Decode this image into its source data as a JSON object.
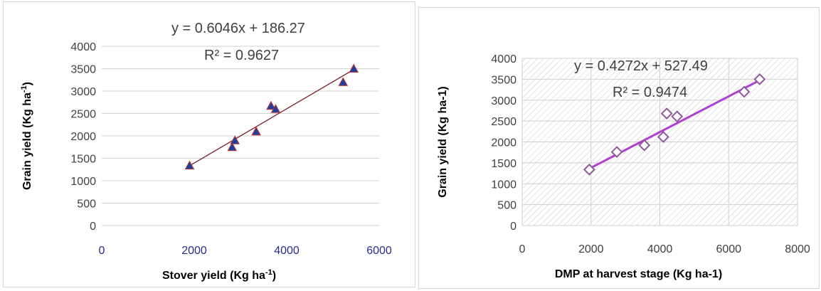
{
  "chart_data": [
    {
      "type": "scatter",
      "xlabel": "Stover yield (Kg ha",
      "xlabel_sup": "-1",
      "xlabel_end": ")",
      "ylabel": "Grain yield (Kg ha",
      "ylabel_sup": "-1",
      "ylabel_end": ")",
      "xlim": [
        0,
        6000
      ],
      "ylim": [
        0,
        4000
      ],
      "xticks": [
        "0",
        "2000",
        "4000",
        "6000"
      ],
      "yticks": [
        "0",
        "500",
        "1000",
        "1500",
        "2000",
        "2500",
        "3000",
        "3500",
        "4000"
      ],
      "grid": "horizontal",
      "marker": "triangle",
      "marker_color": "#1f3f9f",
      "marker_edge_color": "#c0392b",
      "trendline_color": "#7b1c2a",
      "tick_color_x": "#2b2b8c",
      "tick_color_y": "#404040",
      "equation": "y = 0.6046x + 186.27",
      "r_squared": "R² = 0.9627",
      "trendline": {
        "slope": 0.6046,
        "intercept": 186.27,
        "x_range": [
          1900,
          5450
        ]
      },
      "series": [
        {
          "x": [
            1900,
            2820,
            2880,
            3340,
            3660,
            3760,
            5220,
            5450
          ],
          "y": [
            1340,
            1750,
            1900,
            2100,
            2670,
            2600,
            3200,
            3500
          ]
        }
      ]
    },
    {
      "type": "scatter",
      "xlabel": "DMP at harvest stage (Kg ha-1)",
      "ylabel": "Grain yield (Kg ha-1)",
      "xlim": [
        0,
        8000
      ],
      "ylim": [
        0,
        4000
      ],
      "xticks": [
        "0",
        "2000",
        "4000",
        "6000",
        "8000"
      ],
      "yticks": [
        "0",
        "500",
        "1000",
        "1500",
        "2000",
        "2500",
        "3000",
        "3500",
        "4000"
      ],
      "grid": "both",
      "plot_background": "hatched",
      "marker": "diamond-open",
      "marker_color": "#8e5a9a",
      "trendline_color": "#b040d0",
      "tick_color_x": "#404040",
      "tick_color_y": "#404040",
      "equation": "y = 0.4272x + 527.49",
      "r_squared": "R² = 0.9474",
      "trendline": {
        "slope": 0.4272,
        "intercept": 527.49,
        "x_range": [
          1950,
          6900
        ]
      },
      "series": [
        {
          "x": [
            1950,
            2750,
            3550,
            4100,
            4200,
            4500,
            6450,
            6900
          ],
          "y": [
            1340,
            1760,
            1920,
            2120,
            2680,
            2610,
            3200,
            3500
          ]
        }
      ]
    }
  ]
}
